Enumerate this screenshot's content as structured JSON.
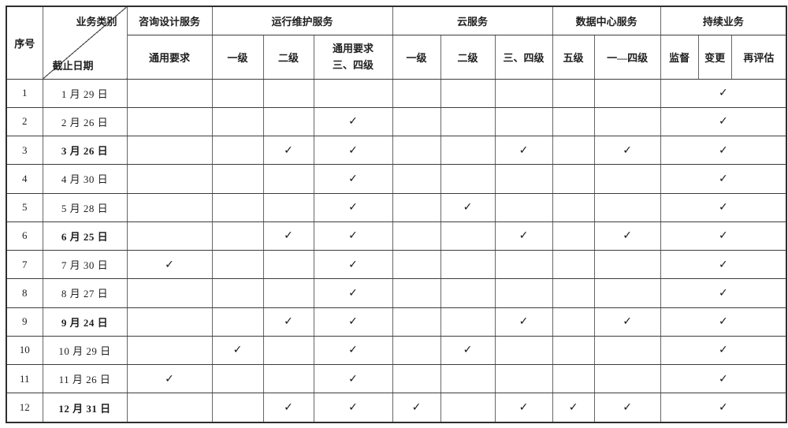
{
  "table": {
    "corner": {
      "col_header": "序号",
      "diag_top": "业务类别",
      "diag_bottom": "截止日期"
    },
    "groups": [
      {
        "label": "咨询设计服务",
        "cols": [
          "通用要求"
        ]
      },
      {
        "label": "运行维护服务",
        "cols": [
          "一级",
          "二级",
          "通用要求\n三、四级"
        ]
      },
      {
        "label": "云服务",
        "cols": [
          "一级",
          "二级",
          "三、四级"
        ]
      },
      {
        "label": "数据中心服务",
        "cols": [
          "五级",
          "一—四级"
        ]
      },
      {
        "label": "持续业务",
        "cols": [
          "监督",
          "变更",
          "再评估"
        ]
      }
    ],
    "check_glyph": "✓",
    "rows": [
      {
        "no": "1",
        "date": "1 月 29 日",
        "bold": false,
        "checks": [
          0,
          0,
          0,
          0,
          0,
          0,
          0,
          0,
          0
        ],
        "continuous": 1
      },
      {
        "no": "2",
        "date": "2 月 26 日",
        "bold": false,
        "checks": [
          0,
          0,
          0,
          1,
          0,
          0,
          0,
          0,
          0
        ],
        "continuous": 1
      },
      {
        "no": "3",
        "date": "3 月 26 日",
        "bold": true,
        "checks": [
          0,
          0,
          1,
          1,
          0,
          0,
          1,
          0,
          1
        ],
        "continuous": 1
      },
      {
        "no": "4",
        "date": "4 月 30 日",
        "bold": false,
        "checks": [
          0,
          0,
          0,
          1,
          0,
          0,
          0,
          0,
          0
        ],
        "continuous": 1
      },
      {
        "no": "5",
        "date": "5 月 28 日",
        "bold": false,
        "checks": [
          0,
          0,
          0,
          1,
          0,
          1,
          0,
          0,
          0
        ],
        "continuous": 1
      },
      {
        "no": "6",
        "date": "6 月 25 日",
        "bold": true,
        "checks": [
          0,
          0,
          1,
          1,
          0,
          0,
          1,
          0,
          1
        ],
        "continuous": 1
      },
      {
        "no": "7",
        "date": "7 月 30 日",
        "bold": false,
        "checks": [
          1,
          0,
          0,
          1,
          0,
          0,
          0,
          0,
          0
        ],
        "continuous": 1
      },
      {
        "no": "8",
        "date": "8 月 27 日",
        "bold": false,
        "checks": [
          0,
          0,
          0,
          1,
          0,
          0,
          0,
          0,
          0
        ],
        "continuous": 1
      },
      {
        "no": "9",
        "date": "9 月 24 日",
        "bold": true,
        "checks": [
          0,
          0,
          1,
          1,
          0,
          0,
          1,
          0,
          1
        ],
        "continuous": 1
      },
      {
        "no": "10",
        "date": "10 月 29 日",
        "bold": false,
        "checks": [
          0,
          1,
          0,
          1,
          0,
          1,
          0,
          0,
          0
        ],
        "continuous": 1
      },
      {
        "no": "11",
        "date": "11 月 26 日",
        "bold": false,
        "checks": [
          1,
          0,
          0,
          1,
          0,
          0,
          0,
          0,
          0
        ],
        "continuous": 1
      },
      {
        "no": "12",
        "date": "12 月 31 日",
        "bold": true,
        "checks": [
          0,
          0,
          1,
          1,
          1,
          0,
          1,
          1,
          1
        ],
        "continuous": 1
      }
    ]
  },
  "colors": {
    "border_outer": "#2e2e2e",
    "border_horizontal": "#3c3c3c",
    "border_vertical": "#676767",
    "text": "#1f1f1f",
    "check": "#15151e"
  }
}
